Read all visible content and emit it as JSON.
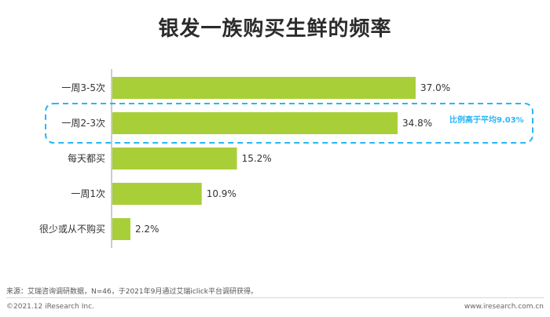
{
  "chart_data": {
    "type": "bar",
    "orientation": "horizontal",
    "title": "银发一族购买生鲜的频率",
    "categories": [
      "一周3-5次",
      "一周2-3次",
      "每天都买",
      "一周1次",
      "很少或从不购买"
    ],
    "values": [
      37.0,
      34.8,
      15.2,
      10.9,
      2.2
    ],
    "value_labels": [
      "37.0%",
      "34.8%",
      "15.2%",
      "10.9%",
      "2.2%"
    ],
    "unit": "%",
    "bar_color": "#a9cf38",
    "grid": false,
    "highlight": {
      "category": "一周2-3次",
      "text": "比例高于平均9.03%",
      "color": "#29b6f6"
    }
  },
  "footer": {
    "source": "来源：艾瑞咨询调研数据，N=46，于2021年9月通过艾瑞iclick平台调研获得。",
    "copyright": "©2021.12 iResearch Inc.",
    "site": "www.iresearch.com.cn"
  }
}
